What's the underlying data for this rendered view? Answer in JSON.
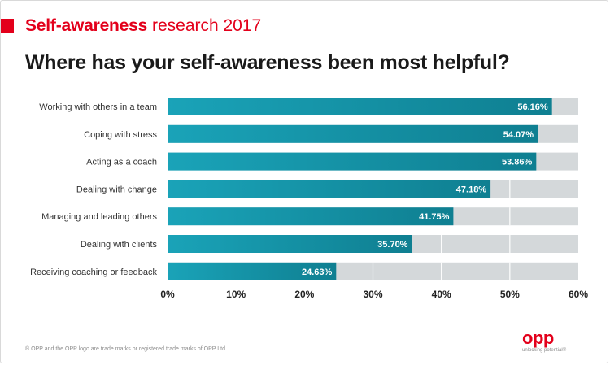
{
  "header": {
    "brand": "Self-awareness",
    "subtitle": "research 2017"
  },
  "title": "Where has your self-awareness been most helpful?",
  "footer": {
    "note": "® OPP and the OPP logo are trade marks or registered trade marks of OPP Ltd.",
    "logo_text": "opp",
    "logo_tagline": "unlocking potential®"
  },
  "colors": {
    "accent": "#e3001b",
    "bar_fill": "#1aa3b8",
    "bar_fill_dark": "#0f7f91",
    "track": "#d4d8da"
  },
  "chart_data": {
    "type": "bar",
    "orientation": "horizontal",
    "categories": [
      "Working with others in a team",
      "Coping with stress",
      "Acting as a coach",
      "Dealing with change",
      "Managing and leading others",
      "Dealing with clients",
      "Receiving coaching or feedback"
    ],
    "values": [
      56.16,
      54.07,
      53.86,
      47.18,
      41.75,
      35.7,
      24.63
    ],
    "value_labels": [
      "56.16%",
      "54.07%",
      "53.86%",
      "47.18%",
      "41.75%",
      "35.70%",
      "24.63%"
    ],
    "xlim": [
      0,
      60
    ],
    "ticks": [
      0,
      10,
      20,
      30,
      40,
      50,
      60
    ],
    "tick_labels": [
      "0%",
      "10%",
      "20%",
      "30%",
      "40%",
      "50%",
      "60%"
    ],
    "grid": true
  }
}
